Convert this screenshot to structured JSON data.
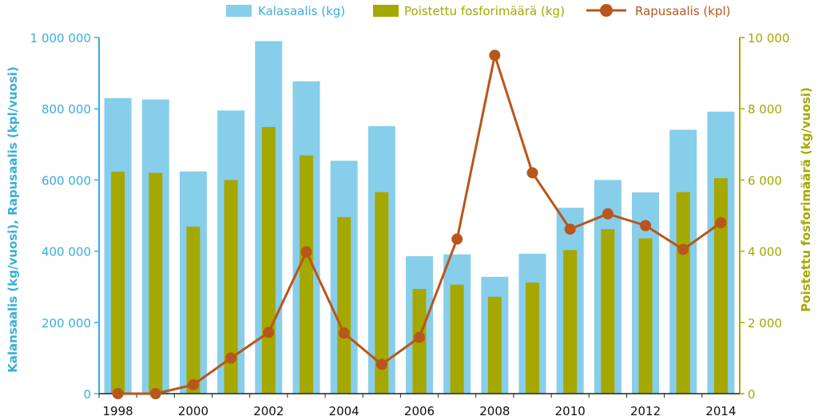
{
  "chart_data": {
    "type": "bar",
    "title": "",
    "x": [
      1998,
      1999,
      2000,
      2001,
      2002,
      2003,
      2004,
      2005,
      2006,
      2007,
      2008,
      2009,
      2010,
      2011,
      2012,
      2013,
      2014
    ],
    "x_tick_labels": [
      "1998",
      "2000",
      "2002",
      "2004",
      "2006",
      "2008",
      "2010",
      "2012",
      "2014"
    ],
    "x_tick_values": [
      1998,
      2000,
      2002,
      2004,
      2006,
      2008,
      2010,
      2012,
      2014
    ],
    "ylabel_left": "Kalansaalis (kg/vuosi), Rapusaalis (kpl/vuosi)",
    "ylabel_right": "Poistettu fosforimäärä (kg/vuosi)",
    "ylim_left": [
      0,
      1000000
    ],
    "ylim_right": [
      0,
      10000
    ],
    "left_tick_labels": [
      "0",
      "200 000",
      "400 000",
      "600 000",
      "800 000",
      "1 000 000"
    ],
    "left_tick_values": [
      0,
      200000,
      400000,
      600000,
      800000,
      1000000
    ],
    "right_tick_labels": [
      "0",
      "2 000",
      "4 000",
      "6 000",
      "8 000",
      "10 000"
    ],
    "right_tick_values": [
      0,
      2000,
      4000,
      6000,
      8000,
      10000
    ],
    "legend_position": "top",
    "grid": false,
    "series": [
      {
        "name": "Kalasaalis (kg)",
        "kind": "bar",
        "axis": "left",
        "color": "#87ceeb",
        "values": [
          830000,
          826000,
          624000,
          795000,
          990000,
          877000,
          654000,
          751000,
          386000,
          391000,
          328000,
          393000,
          522000,
          600000,
          565000,
          741000,
          792000
        ]
      },
      {
        "name": "Poistettu fosforimäärä (kg)",
        "kind": "bar",
        "axis": "right",
        "color": "#a5a800",
        "values": [
          6230,
          6200,
          4690,
          6000,
          7490,
          6690,
          4960,
          5660,
          2940,
          3060,
          2720,
          3120,
          4030,
          4620,
          4360,
          5660,
          6050
        ]
      },
      {
        "name": "Rapusaalis (kpl)",
        "kind": "line",
        "axis": "left",
        "color": "#b9561c",
        "values": [
          0,
          0,
          25000,
          100000,
          172000,
          398000,
          170000,
          82000,
          158000,
          434000,
          950000,
          620000,
          462000,
          505000,
          472000,
          405000,
          480000
        ]
      }
    ]
  }
}
